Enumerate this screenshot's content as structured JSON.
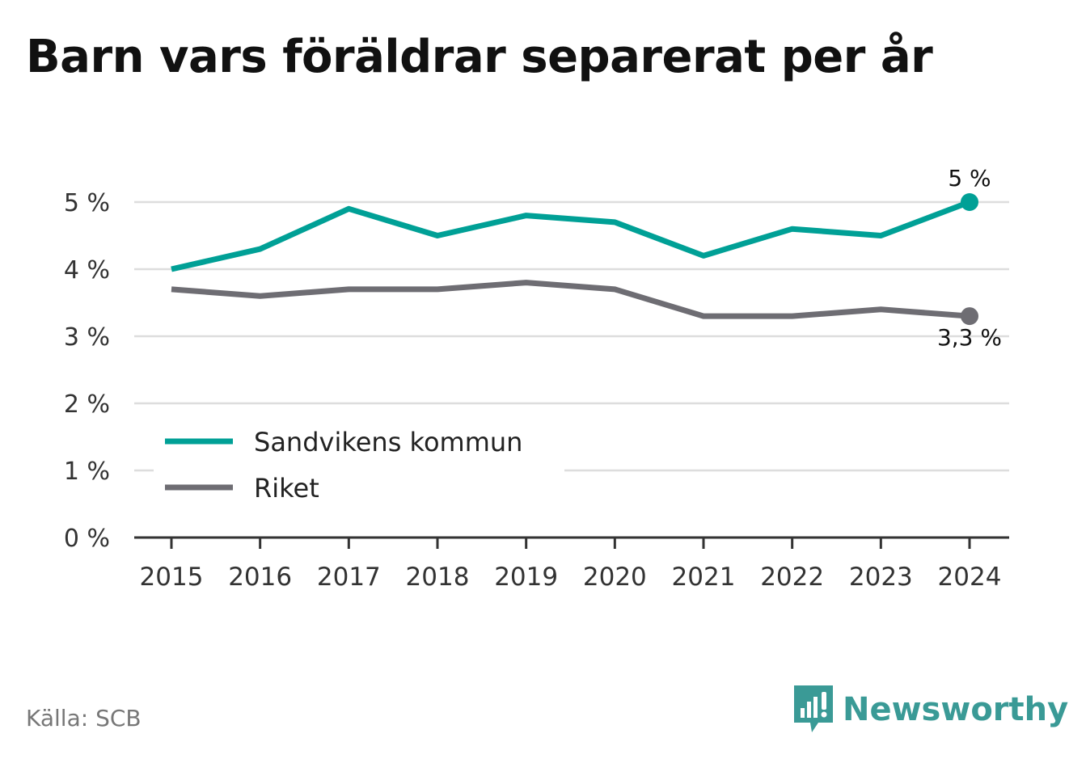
{
  "title": "Barn vars föräldrar separerat per år",
  "source": "Källa: SCB",
  "brand": {
    "name": "Newsworthy",
    "icon": "newsworthy-logo-icon",
    "color": "#3a9a96"
  },
  "chart_data": {
    "type": "line",
    "x": [
      2015,
      2016,
      2017,
      2018,
      2019,
      2020,
      2021,
      2022,
      2023,
      2024
    ],
    "ylim": [
      0,
      5
    ],
    "yticks": [
      0,
      1,
      2,
      3,
      4,
      5
    ],
    "ytick_labels": [
      "0 %",
      "1 %",
      "2 %",
      "3 %",
      "4 %",
      "5 %"
    ],
    "grid": true,
    "legend_position": "bottom-left",
    "series": [
      {
        "name": "Sandvikens kommun",
        "color": "#00a096",
        "values": [
          4.0,
          4.3,
          4.9,
          4.5,
          4.8,
          4.7,
          4.2,
          4.6,
          4.5,
          5.0
        ],
        "end_label": "5 %"
      },
      {
        "name": "Riket",
        "color": "#6e6d73",
        "values": [
          3.7,
          3.6,
          3.7,
          3.7,
          3.8,
          3.7,
          3.3,
          3.3,
          3.4,
          3.3
        ],
        "end_label": "3,3 %"
      }
    ]
  }
}
